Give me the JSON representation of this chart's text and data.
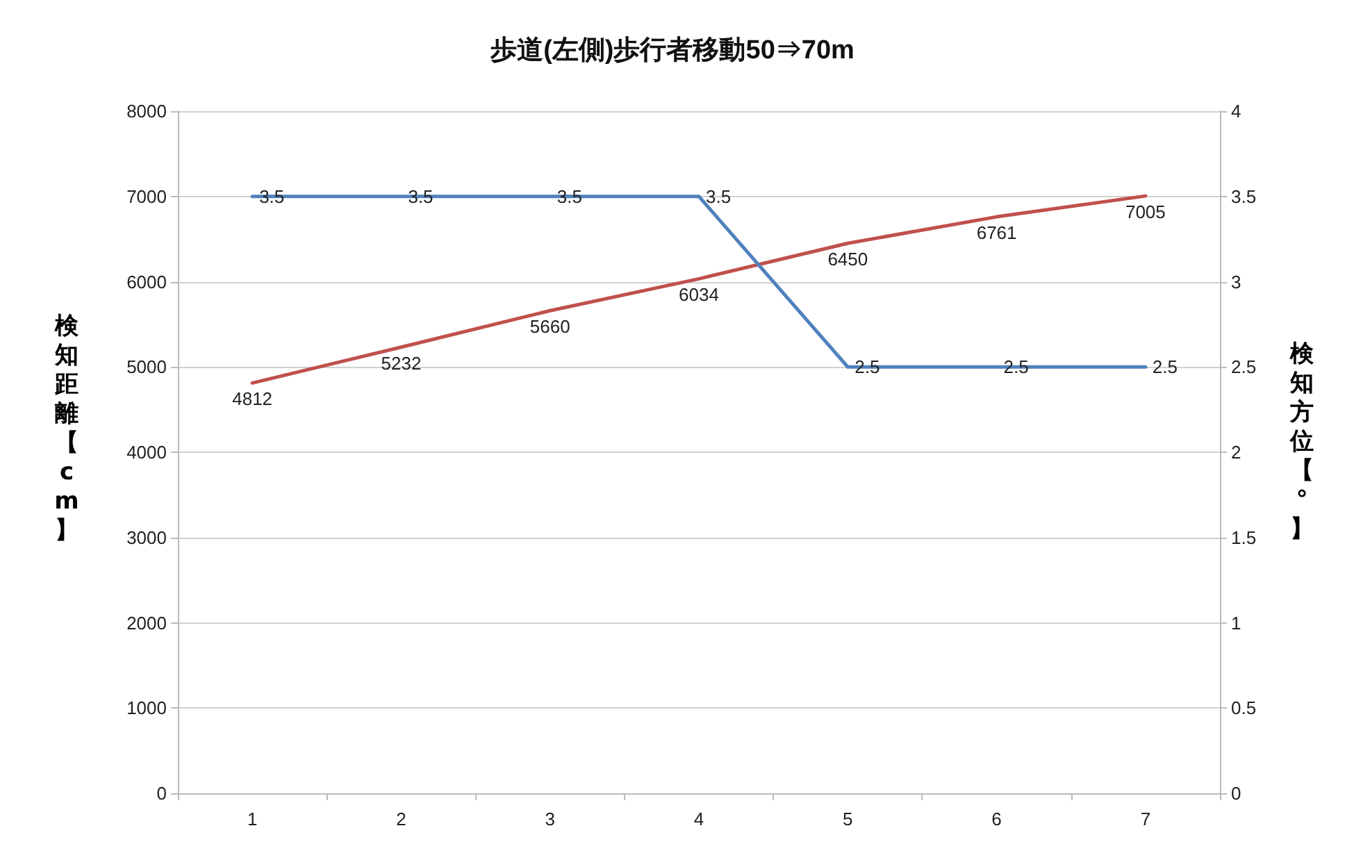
{
  "chart_data": {
    "type": "line",
    "title": "歩道(左側)歩行者移動50⇒70m",
    "ylabel": "検知距離【cm】",
    "y2label": "検知方位【°】",
    "categories": [
      "1",
      "2",
      "3",
      "4",
      "5",
      "6",
      "7"
    ],
    "series": [
      {
        "color": "#c0504d",
        "values": [
          4812,
          5232,
          5660,
          6034,
          6450,
          6761,
          7005
        ]
      },
      {
        "color": "#4f81bd",
        "axis": "y2",
        "values": [
          3.5,
          3.5,
          3.5,
          3.5,
          2.5,
          2.5,
          2.5
        ]
      }
    ],
    "ylim": [
      0,
      8000
    ],
    "yticks": [
      0,
      1000,
      2000,
      3000,
      4000,
      5000,
      6000,
      7000,
      8000
    ],
    "y2lim": [
      0,
      4
    ],
    "y2ticks": [
      0,
      0.5,
      1,
      1.5,
      2,
      2.5,
      3,
      3.5,
      4
    ],
    "grid": "y",
    "marker": "none",
    "line_style": "solid",
    "data_labels": true
  }
}
